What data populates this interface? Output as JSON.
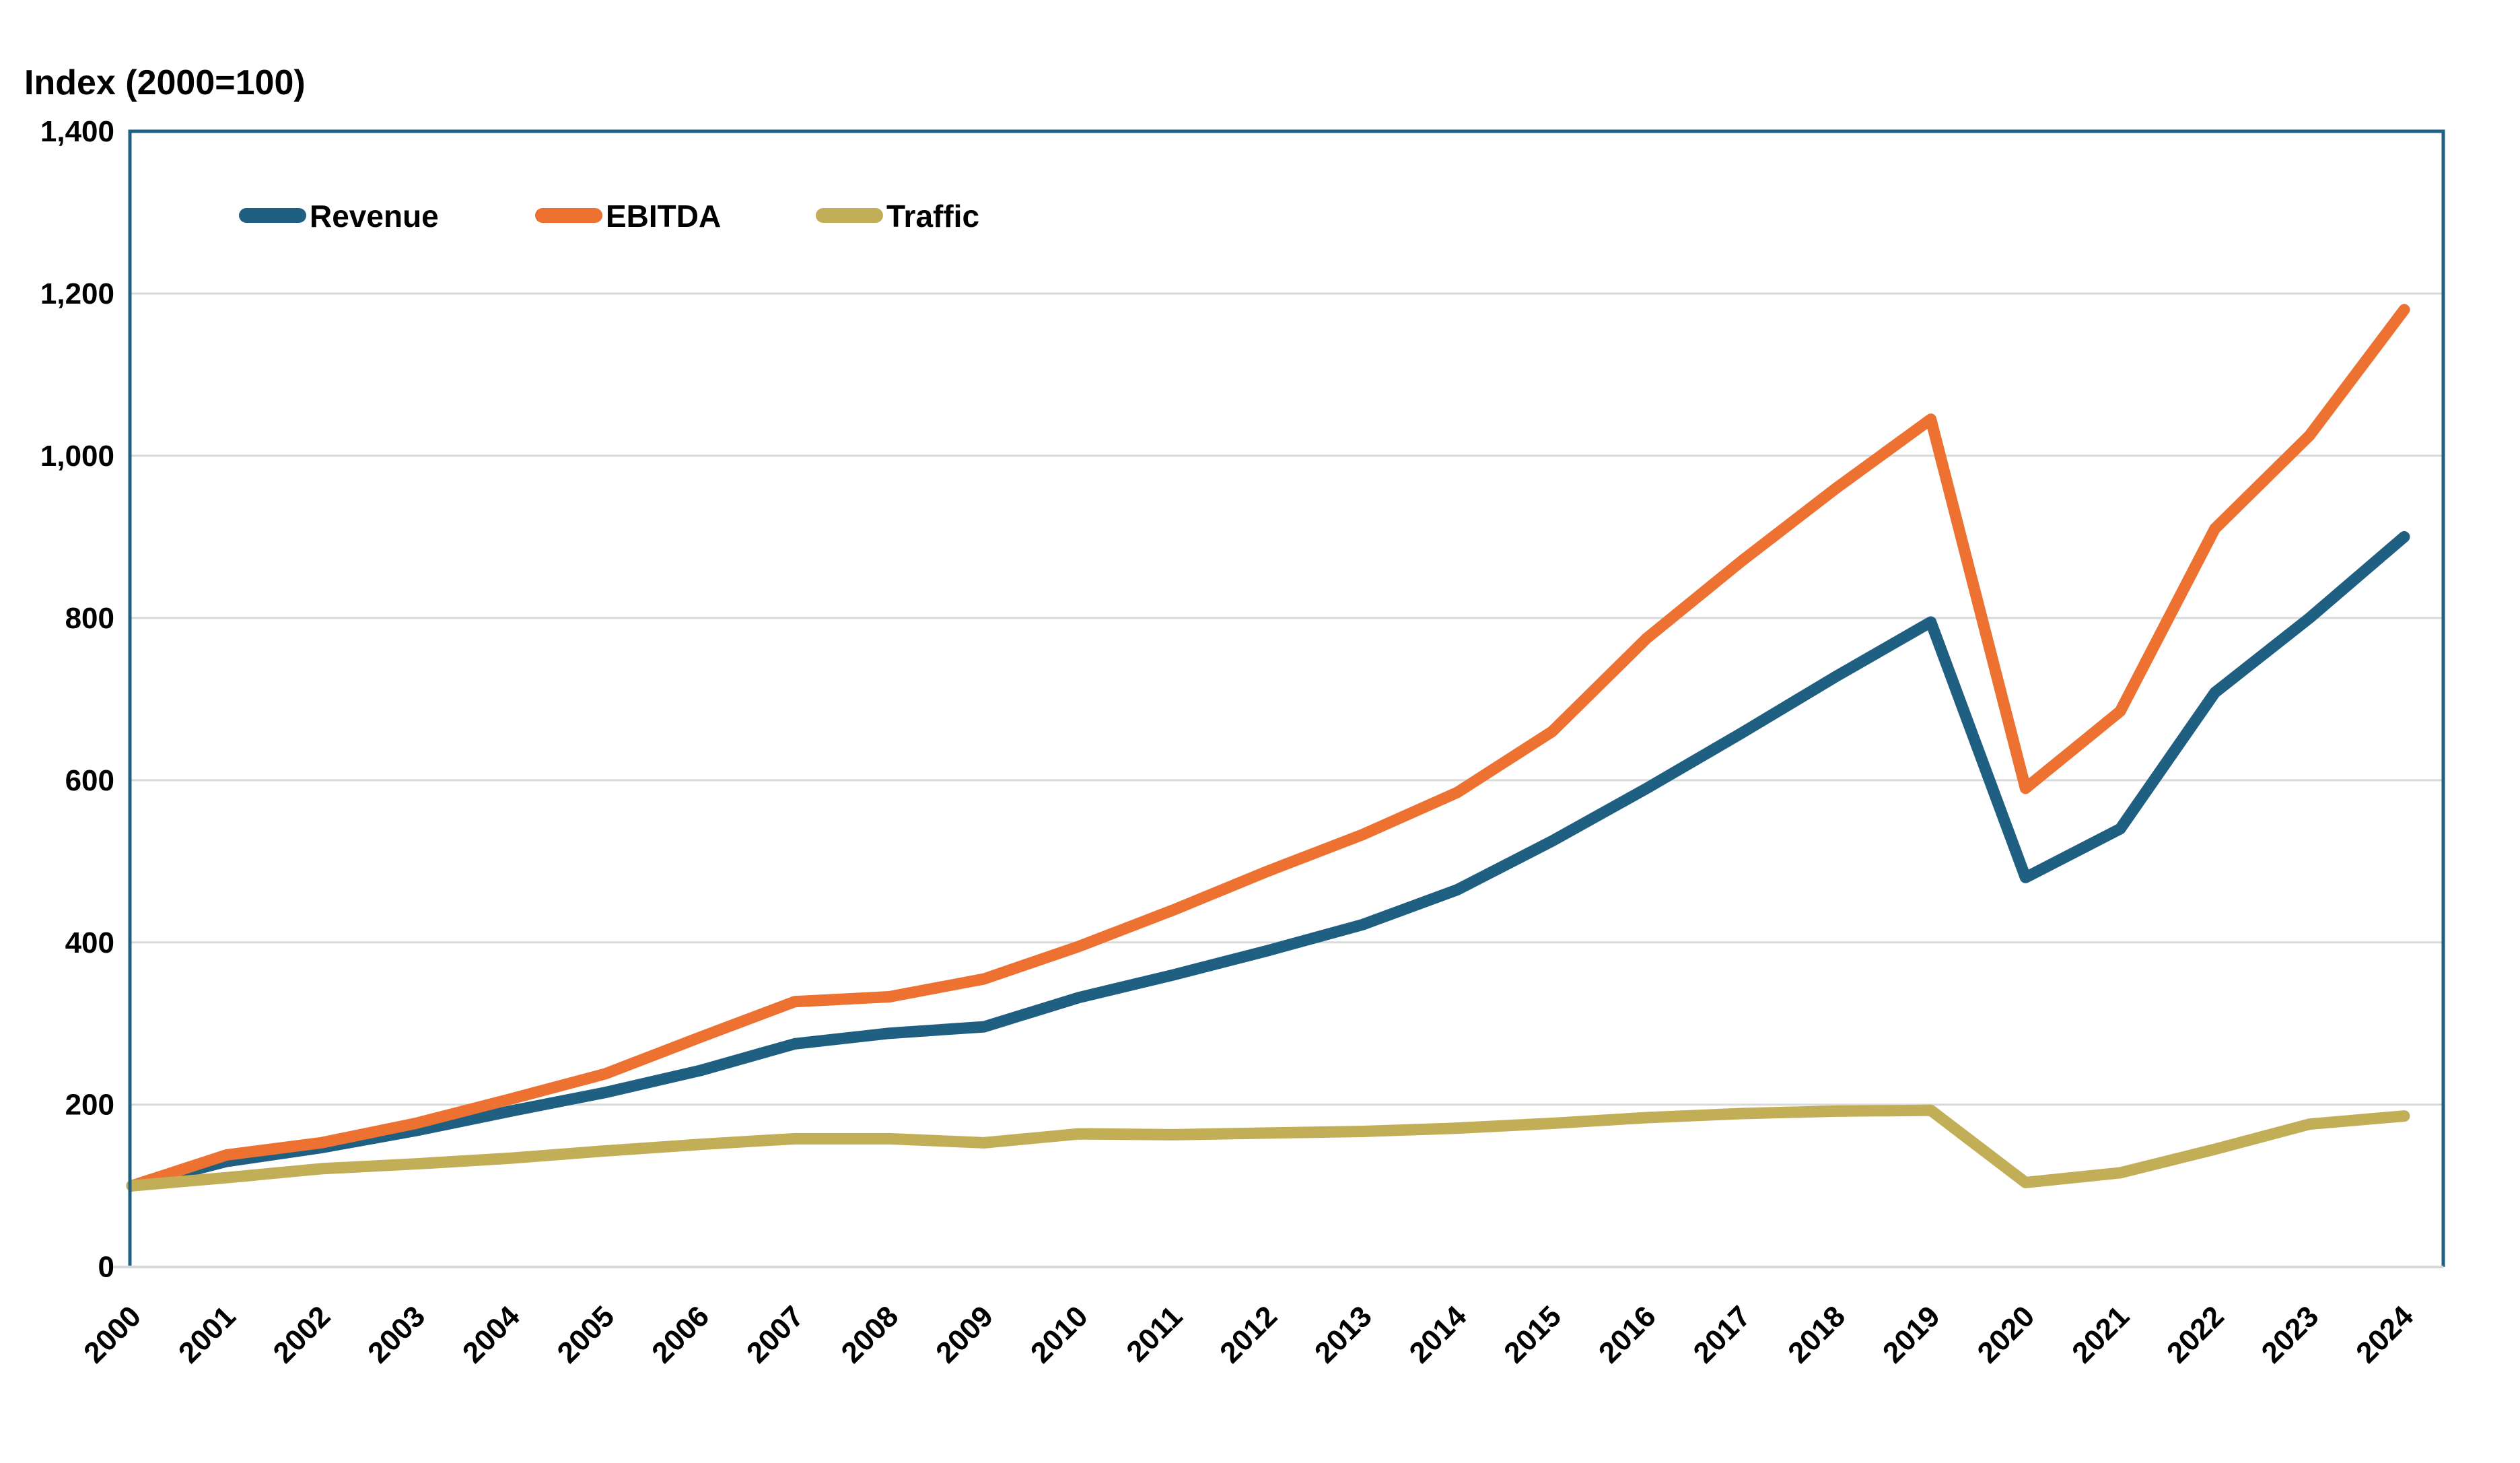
{
  "title": "Index (2000=100)",
  "legend": {
    "revenue_label": "Revenue",
    "ebitda_label": "EBITDA",
    "traffic_label": "Traffic"
  },
  "colors": {
    "revenue": "#1F6082",
    "ebitda": "#ED7231",
    "traffic": "#C1AE57",
    "plot_border": "#1F6082",
    "gridline": "#D9D9D9",
    "axis_line": "#D9D9D9",
    "text": "#000000"
  },
  "y_axis": {
    "tick_labels": [
      "0",
      "200",
      "400",
      "600",
      "800",
      "1,000",
      "1,200",
      "1,400"
    ],
    "tick_values": [
      0,
      200,
      400,
      600,
      800,
      1000,
      1200,
      1400
    ]
  },
  "chart_data": {
    "type": "line",
    "title": "Index (2000=100)",
    "x": [
      2000,
      2001,
      2002,
      2003,
      2004,
      2005,
      2006,
      2007,
      2008,
      2009,
      2010,
      2011,
      2012,
      2013,
      2014,
      2015,
      2016,
      2017,
      2018,
      2019,
      2020,
      2021,
      2022,
      2023,
      2024
    ],
    "categories": [
      "2000",
      "2001",
      "2002",
      "2003",
      "2004",
      "2005",
      "2006",
      "2007",
      "2008",
      "2009",
      "2010",
      "2011",
      "2012",
      "2013",
      "2014",
      "2015",
      "2016",
      "2017",
      "2018",
      "2019",
      "2020",
      "2021",
      "2022",
      "2023",
      "2024"
    ],
    "series": [
      {
        "name": "Revenue",
        "color": "#1F6082",
        "values": [
          100,
          130,
          147,
          168,
          192,
          215,
          242,
          275,
          288,
          296,
          332,
          360,
          390,
          422,
          465,
          525,
          590,
          658,
          728,
          795,
          480,
          540,
          708,
          800,
          900
        ]
      },
      {
        "name": "EBITDA",
        "color": "#ED7231",
        "values": [
          100,
          138,
          153,
          177,
          207,
          238,
          283,
          327,
          333,
          355,
          395,
          440,
          488,
          533,
          585,
          660,
          775,
          870,
          960,
          1045,
          590,
          685,
          910,
          1025,
          1180
        ]
      },
      {
        "name": "Traffic",
        "color": "#C1AE57",
        "values": [
          100,
          110,
          121,
          127,
          134,
          143,
          151,
          158,
          158,
          153,
          164,
          163,
          165,
          167,
          171,
          177,
          184,
          189,
          192,
          193,
          104,
          116,
          145,
          176,
          186
        ]
      }
    ],
    "xlabel": "",
    "ylabel": "Index (2000=100)",
    "ylim": [
      0,
      1400
    ],
    "ytick_interval": 200,
    "grid": "horizontal",
    "legend_position": "top-left-inside",
    "x_tick_label_rotation_deg": 45
  }
}
